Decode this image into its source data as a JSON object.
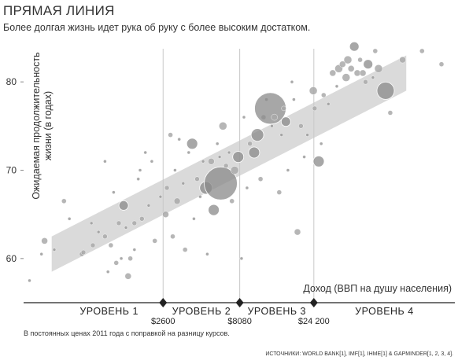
{
  "title": "ПРЯМАЯ ЛИНИЯ",
  "subtitle": "Более долгая жизнь идет рука об руку с более высоким достатком.",
  "footnote": "В постоянных ценах 2011 года с поправкой на разницу курсов.",
  "source": "ИСТОЧНИКИ: WORLD BANK[1], IMF[1], IHME[1] & GAPMINDER[1, 2, 3, 4].",
  "chart_data": {
    "type": "scatter",
    "xlabel": "Доход (ВВП на душу населения)",
    "ylabel": "Ожидаемая продолжительность жизни (в годах)",
    "xscale": "log",
    "xlim": [
      330,
      195000
    ],
    "ylim": [
      55,
      85
    ],
    "y_ticks": [
      60,
      70,
      80
    ],
    "grid": false,
    "thresholds": [
      {
        "x": 2600,
        "label": "$2600"
      },
      {
        "x": 8080,
        "label": "$8080"
      },
      {
        "x": 24200,
        "label": "$24 200"
      }
    ],
    "levels": [
      "УРОВЕНЬ 1",
      "УРОВЕНЬ 2",
      "УРОВЕНЬ 3",
      "УРОВЕНЬ 4"
    ],
    "trend_band": {
      "x_start": 500,
      "y_start": 60.5,
      "x_end": 95000,
      "y_end": 81,
      "half_width_years": 2
    },
    "points": [
      {
        "x": 360,
        "y": 57.5,
        "r": 2
      },
      {
        "x": 450,
        "y": 62,
        "r": 4
      },
      {
        "x": 430,
        "y": 60.5,
        "r": 2
      },
      {
        "x": 520,
        "y": 61,
        "r": 2
      },
      {
        "x": 600,
        "y": 66.5,
        "r": 3
      },
      {
        "x": 650,
        "y": 64.5,
        "r": 2
      },
      {
        "x": 780,
        "y": 60.5,
        "r": 3
      },
      {
        "x": 800,
        "y": 60.7,
        "r": 3
      },
      {
        "x": 900,
        "y": 64,
        "r": 2
      },
      {
        "x": 920,
        "y": 61.5,
        "r": 3
      },
      {
        "x": 1000,
        "y": 63,
        "r": 2
      },
      {
        "x": 1100,
        "y": 62.5,
        "r": 3
      },
      {
        "x": 1100,
        "y": 71,
        "r": 2
      },
      {
        "x": 1150,
        "y": 58.5,
        "r": 2
      },
      {
        "x": 1200,
        "y": 61.5,
        "r": 3
      },
      {
        "x": 1250,
        "y": 67.5,
        "r": 2
      },
      {
        "x": 1300,
        "y": 59.5,
        "r": 3
      },
      {
        "x": 1350,
        "y": 64,
        "r": 3
      },
      {
        "x": 1400,
        "y": 60,
        "r": 2
      },
      {
        "x": 1450,
        "y": 66,
        "r": 6
      },
      {
        "x": 1500,
        "y": 63.5,
        "r": 2
      },
      {
        "x": 1550,
        "y": 58,
        "r": 4
      },
      {
        "x": 1600,
        "y": 60,
        "r": 3
      },
      {
        "x": 1700,
        "y": 61,
        "r": 2
      },
      {
        "x": 1700,
        "y": 64,
        "r": 3
      },
      {
        "x": 1800,
        "y": 69,
        "r": 2
      },
      {
        "x": 1850,
        "y": 70,
        "r": 2
      },
      {
        "x": 1900,
        "y": 64.5,
        "r": 3
      },
      {
        "x": 2000,
        "y": 72,
        "r": 2
      },
      {
        "x": 2100,
        "y": 66,
        "r": 2
      },
      {
        "x": 2200,
        "y": 71,
        "r": 2
      },
      {
        "x": 2300,
        "y": 62,
        "r": 3
      },
      {
        "x": 2500,
        "y": 67,
        "r": 2
      },
      {
        "x": 2700,
        "y": 65,
        "r": 4
      },
      {
        "x": 2750,
        "y": 68,
        "r": 3
      },
      {
        "x": 2900,
        "y": 74,
        "r": 3
      },
      {
        "x": 3000,
        "y": 62.5,
        "r": 3
      },
      {
        "x": 3100,
        "y": 70,
        "r": 2
      },
      {
        "x": 3200,
        "y": 66.5,
        "r": 4
      },
      {
        "x": 3300,
        "y": 73.5,
        "r": 2
      },
      {
        "x": 3500,
        "y": 68.5,
        "r": 2
      },
      {
        "x": 3600,
        "y": 61,
        "r": 3
      },
      {
        "x": 3800,
        "y": 72,
        "r": 2
      },
      {
        "x": 4000,
        "y": 73,
        "r": 7
      },
      {
        "x": 4100,
        "y": 64.5,
        "r": 2
      },
      {
        "x": 4300,
        "y": 69,
        "r": 3
      },
      {
        "x": 4500,
        "y": 67,
        "r": 2
      },
      {
        "x": 4700,
        "y": 71,
        "r": 2
      },
      {
        "x": 4900,
        "y": 68,
        "r": 8
      },
      {
        "x": 5000,
        "y": 60.5,
        "r": 2
      },
      {
        "x": 5300,
        "y": 71,
        "r": 4
      },
      {
        "x": 5500,
        "y": 65.5,
        "r": 7
      },
      {
        "x": 5800,
        "y": 73,
        "r": 2
      },
      {
        "x": 6000,
        "y": 71.5,
        "r": 2
      },
      {
        "x": 6100,
        "y": 68.5,
        "r": 21
      },
      {
        "x": 6300,
        "y": 75,
        "r": 5
      },
      {
        "x": 6600,
        "y": 70.5,
        "r": 3
      },
      {
        "x": 6900,
        "y": 72,
        "r": 2
      },
      {
        "x": 7200,
        "y": 66.5,
        "r": 3
      },
      {
        "x": 7500,
        "y": 70,
        "r": 5
      },
      {
        "x": 7900,
        "y": 71.5,
        "r": 7
      },
      {
        "x": 8300,
        "y": 60,
        "r": 2
      },
      {
        "x": 8600,
        "y": 76,
        "r": 2
      },
      {
        "x": 9000,
        "y": 68,
        "r": 2
      },
      {
        "x": 9400,
        "y": 73,
        "r": 3
      },
      {
        "x": 10000,
        "y": 72,
        "r": 7
      },
      {
        "x": 10500,
        "y": 74,
        "r": 8
      },
      {
        "x": 11000,
        "y": 69,
        "r": 3
      },
      {
        "x": 11500,
        "y": 76,
        "r": 3
      },
      {
        "x": 12000,
        "y": 78,
        "r": 2
      },
      {
        "x": 12700,
        "y": 77,
        "r": 20
      },
      {
        "x": 13000,
        "y": 75,
        "r": 2
      },
      {
        "x": 13500,
        "y": 76,
        "r": 4
      },
      {
        "x": 14500,
        "y": 67.5,
        "r": 3
      },
      {
        "x": 15000,
        "y": 74,
        "r": 2
      },
      {
        "x": 15500,
        "y": 77,
        "r": 3
      },
      {
        "x": 16000,
        "y": 75.5,
        "r": 6
      },
      {
        "x": 16500,
        "y": 70,
        "r": 2
      },
      {
        "x": 17500,
        "y": 80,
        "r": 2
      },
      {
        "x": 18000,
        "y": 78,
        "r": 2
      },
      {
        "x": 19000,
        "y": 63,
        "r": 4
      },
      {
        "x": 20000,
        "y": 75,
        "r": 3
      },
      {
        "x": 21000,
        "y": 71.5,
        "r": 2
      },
      {
        "x": 22000,
        "y": 74,
        "r": 2
      },
      {
        "x": 24000,
        "y": 79,
        "r": 5
      },
      {
        "x": 24500,
        "y": 77,
        "r": 3
      },
      {
        "x": 26000,
        "y": 71,
        "r": 7
      },
      {
        "x": 27000,
        "y": 73,
        "r": 2
      },
      {
        "x": 28000,
        "y": 78.5,
        "r": 3
      },
      {
        "x": 30000,
        "y": 77.5,
        "r": 2
      },
      {
        "x": 32000,
        "y": 81,
        "r": 4
      },
      {
        "x": 34000,
        "y": 79.5,
        "r": 2
      },
      {
        "x": 35000,
        "y": 81.5,
        "r": 5
      },
      {
        "x": 37000,
        "y": 82,
        "r": 4
      },
      {
        "x": 39000,
        "y": 80.5,
        "r": 5
      },
      {
        "x": 40000,
        "y": 82.5,
        "r": 5
      },
      {
        "x": 42000,
        "y": 81.5,
        "r": 4
      },
      {
        "x": 44000,
        "y": 84,
        "r": 6
      },
      {
        "x": 46000,
        "y": 81,
        "r": 4
      },
      {
        "x": 48000,
        "y": 82.5,
        "r": 3
      },
      {
        "x": 50000,
        "y": 81,
        "r": 4
      },
      {
        "x": 52000,
        "y": 80,
        "r": 3
      },
      {
        "x": 54000,
        "y": 82,
        "r": 6
      },
      {
        "x": 58000,
        "y": 80.5,
        "r": 2
      },
      {
        "x": 60000,
        "y": 83.5,
        "r": 3
      },
      {
        "x": 63000,
        "y": 81.5,
        "r": 5
      },
      {
        "x": 70000,
        "y": 79,
        "r": 11
      },
      {
        "x": 75000,
        "y": 76.5,
        "r": 3
      },
      {
        "x": 90000,
        "y": 82.5,
        "r": 4
      },
      {
        "x": 120000,
        "y": 83.5,
        "r": 3
      },
      {
        "x": 160000,
        "y": 82,
        "r": 3
      }
    ]
  }
}
